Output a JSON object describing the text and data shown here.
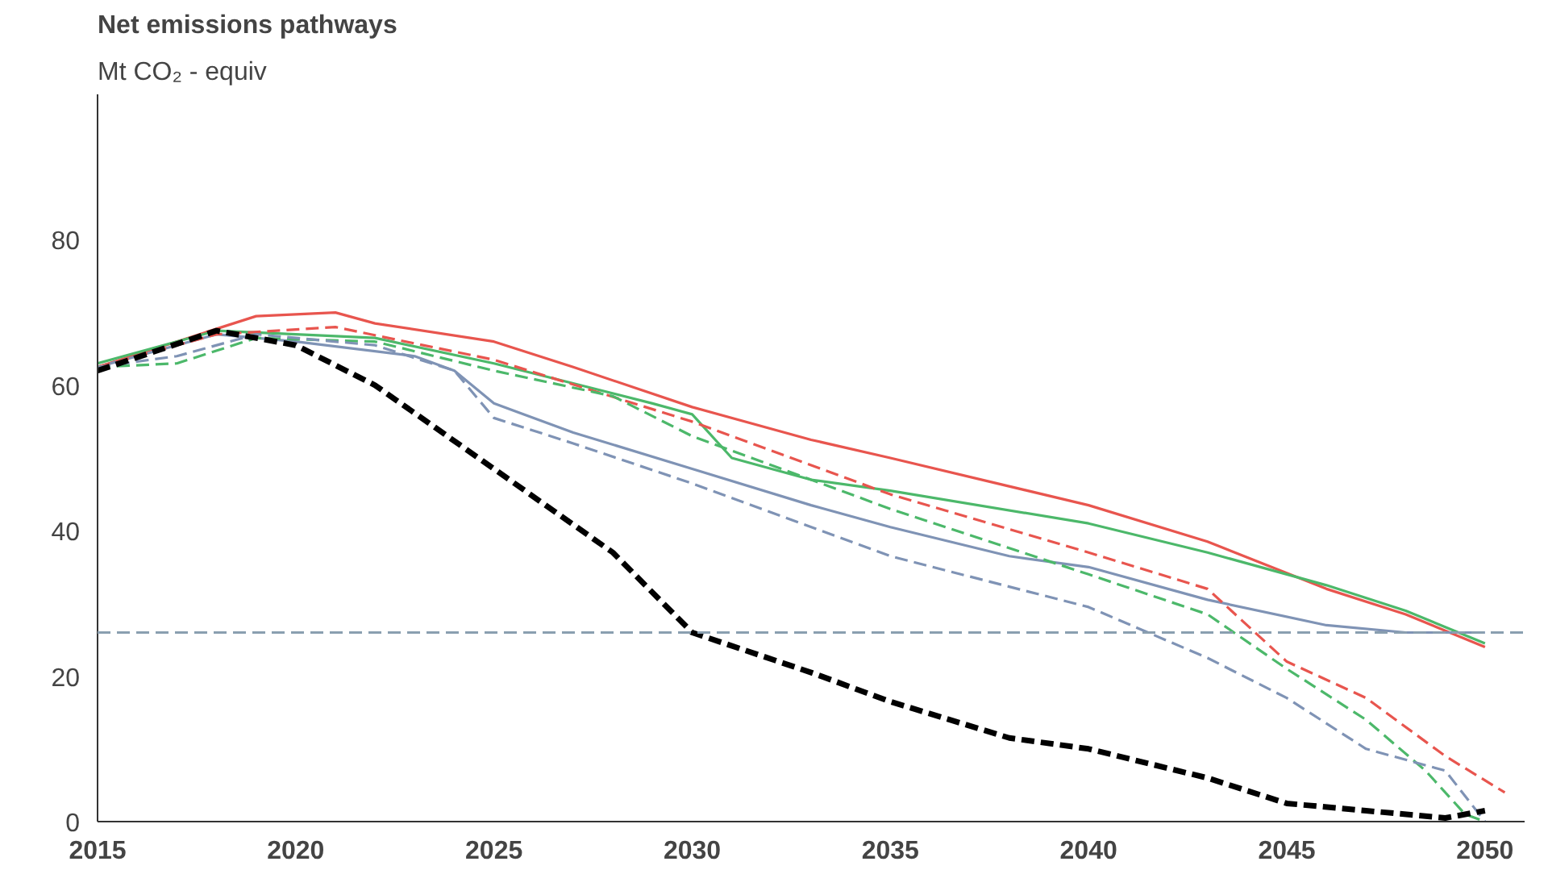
{
  "chart_data": {
    "type": "line",
    "title": "Net emissions pathways",
    "subtitle": "Mt CO₂ - equiv",
    "xlim": [
      2015,
      2051
    ],
    "xticks": [
      2015,
      2020,
      2025,
      2030,
      2035,
      2040,
      2045,
      2050
    ],
    "ylim": [
      0,
      100
    ],
    "yticks": [
      0,
      20,
      40,
      60,
      80
    ],
    "grid": false,
    "marker": "none",
    "ref_lines": [
      {
        "axis": "y",
        "value": 26,
        "color": "#8a9fb0",
        "line_style": "dashed"
      }
    ],
    "series": [
      {
        "color": "#e8554e",
        "line_style": "solid",
        "x": [
          2015,
          2017,
          2019,
          2021,
          2022,
          2025,
          2027,
          2030,
          2033,
          2035,
          2040,
          2043,
          2046,
          2048,
          2050
        ],
        "values": [
          62.5,
          66,
          69.5,
          70,
          68.5,
          66,
          62.5,
          57,
          52.5,
          50,
          43.5,
          38.5,
          32,
          28.5,
          24
        ]
      },
      {
        "color": "#4cb86a",
        "line_style": "solid",
        "x": [
          2015,
          2018,
          2020,
          2022,
          2025,
          2029,
          2030,
          2031,
          2033,
          2035,
          2040,
          2043,
          2046,
          2048,
          2050
        ],
        "values": [
          63,
          67.5,
          67,
          66.5,
          63,
          57.5,
          56,
          50,
          47,
          45.5,
          41,
          37,
          32.5,
          29,
          24.5
        ]
      },
      {
        "color": "#7f93b5",
        "line_style": "solid",
        "x": [
          2015,
          2018,
          2020,
          2023,
          2024,
          2025,
          2027,
          2030,
          2033,
          2035,
          2038,
          2040,
          2043,
          2046,
          2048,
          2050
        ],
        "values": [
          62.5,
          67,
          66,
          64,
          62,
          57.5,
          53.5,
          48.5,
          43.5,
          40.5,
          36.5,
          35,
          30.5,
          27,
          26,
          26
        ]
      },
      {
        "color": "#e8554e",
        "line_style": "dashed",
        "x": [
          2015,
          2018,
          2021,
          2025,
          2030,
          2035,
          2040,
          2043,
          2045,
          2047,
          2049,
          2050.5
        ],
        "values": [
          62.5,
          67,
          68,
          63.5,
          55,
          45,
          37,
          32,
          22,
          17,
          9,
          4
        ]
      },
      {
        "color": "#4cb86a",
        "line_style": "dashed",
        "x": [
          2015,
          2017,
          2019,
          2022,
          2025,
          2028,
          2030,
          2035,
          2040,
          2043,
          2045,
          2047,
          2048.5,
          2049.5,
          2050
        ],
        "values": [
          62.5,
          63,
          66.5,
          66,
          62,
          58.5,
          53,
          43,
          34,
          28.5,
          21,
          14,
          7,
          1,
          0
        ]
      },
      {
        "color": "#7f93b5",
        "line_style": "dashed",
        "x": [
          2015,
          2017,
          2019,
          2022,
          2024,
          2025,
          2027,
          2030,
          2035,
          2040,
          2043,
          2045,
          2047,
          2049,
          2050
        ],
        "values": [
          62.5,
          64,
          67,
          65.5,
          62,
          55.5,
          52,
          46.5,
          36.5,
          29.5,
          22.5,
          17,
          10,
          7,
          0
        ]
      },
      {
        "color": "#000000",
        "line_style": "dashed",
        "x": [
          2015,
          2018,
          2020,
          2022,
          2025,
          2028,
          2030,
          2033,
          2035,
          2038,
          2040,
          2043,
          2045,
          2047,
          2049,
          2050
        ],
        "values": [
          62,
          67.5,
          65.5,
          60,
          48.5,
          37,
          26,
          20.5,
          16.5,
          11.5,
          10,
          6,
          2.5,
          1.5,
          0.5,
          1.5
        ]
      }
    ]
  }
}
